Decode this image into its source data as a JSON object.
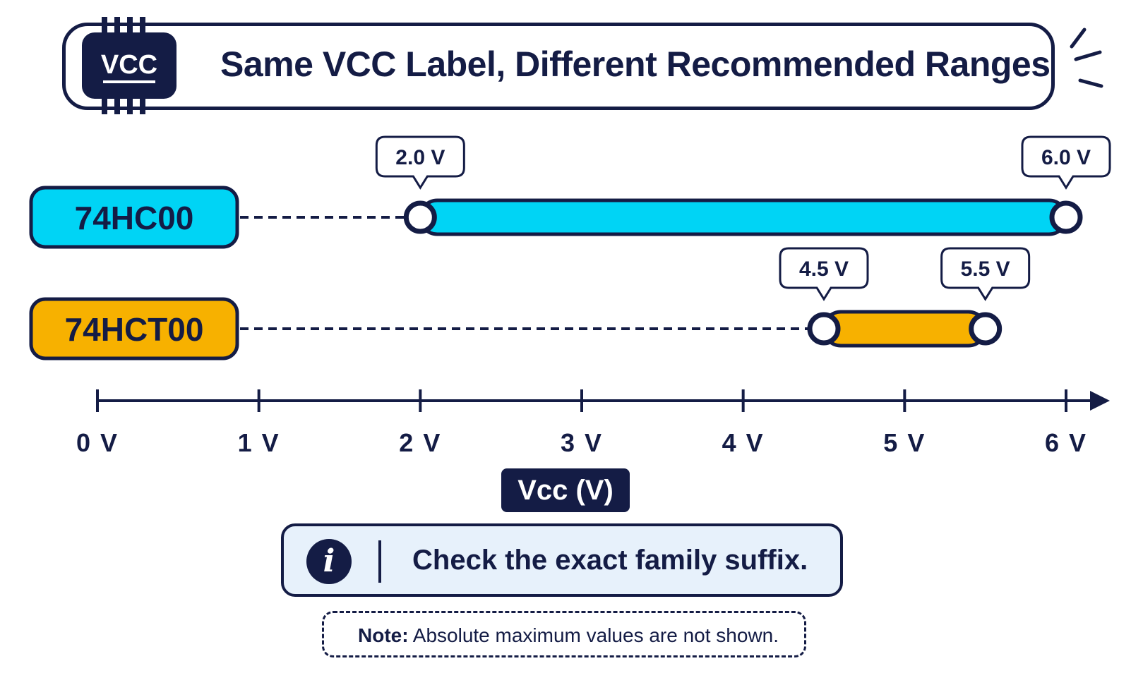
{
  "title": "Same VCC Label, Different Recommended Ranges",
  "chip_label": "VCC",
  "colors": {
    "ink": "#141c45",
    "hc": "#00d4f5",
    "hct": "#f7b100",
    "info_bg": "#e7f1fb"
  },
  "icons": {
    "chip": "ic-chip-icon",
    "sparks": "spark-lines-icon",
    "info": "info-icon"
  },
  "chart_data": {
    "type": "range-bar",
    "x_axis": {
      "label": "Vcc (V)",
      "range": [
        0,
        6
      ],
      "ticks": [
        0,
        1,
        2,
        3,
        4,
        5,
        6
      ],
      "tick_labels": [
        "0 V",
        "1 V",
        "2 V",
        "3 V",
        "4 V",
        "5 V",
        "6 V"
      ]
    },
    "series": [
      {
        "name": "74HC00",
        "min": 2.0,
        "max": 6.0,
        "min_label": "2.0 V",
        "max_label": "6.0 V",
        "color": "#00d4f5"
      },
      {
        "name": "74HCT00",
        "min": 4.5,
        "max": 5.5,
        "min_label": "4.5 V",
        "max_label": "5.5 V",
        "color": "#f7b100"
      }
    ]
  },
  "info": {
    "icon_glyph": "i",
    "text": "Check the exact family suffix."
  },
  "note": {
    "label": "Note:",
    "text": "Absolute maximum values are not shown."
  }
}
